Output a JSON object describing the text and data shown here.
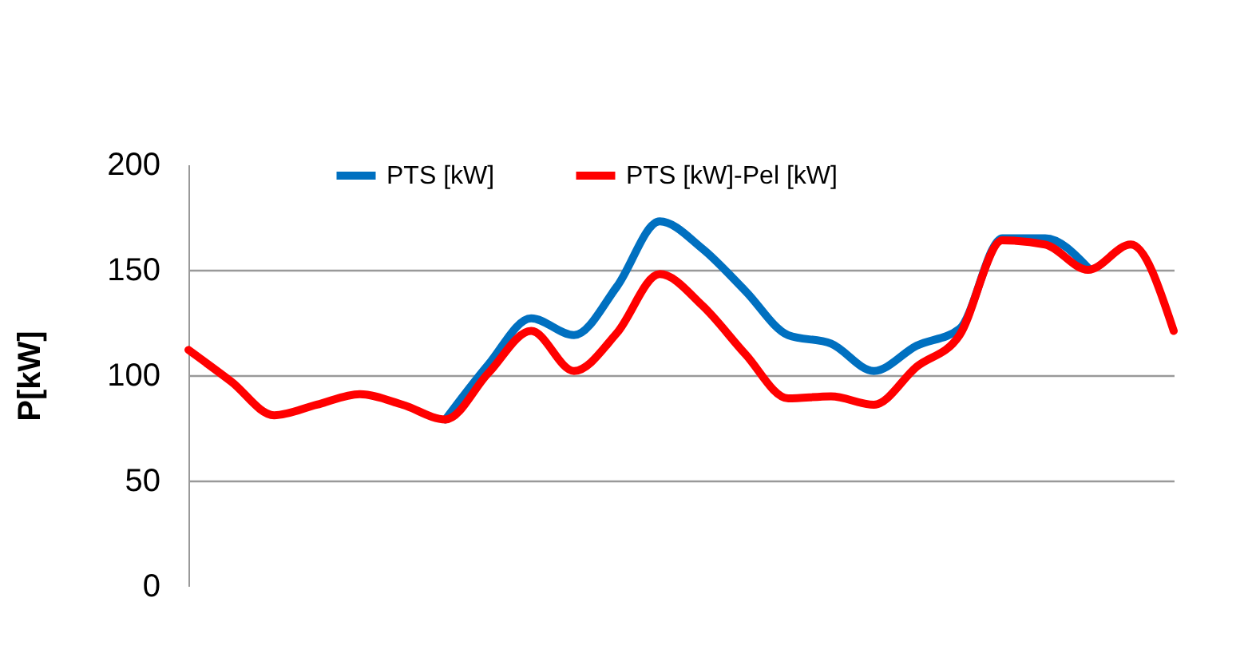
{
  "chart_data": {
    "type": "line",
    "ylabel": "P[kW]",
    "categories": [
      null,
      null,
      null,
      null,
      null,
      null,
      null,
      null,
      null,
      null,
      null,
      null,
      null,
      null,
      null,
      null,
      null,
      null,
      null,
      null,
      null,
      null,
      null,
      null
    ],
    "series": [
      {
        "name": "PTS [kW]",
        "color": "#0070c0",
        "values": [
          null,
          null,
          null,
          null,
          null,
          null,
          79,
          105,
          127,
          119,
          142,
          173,
          160,
          140,
          119,
          115,
          102,
          114,
          122,
          165,
          165,
          151,
          null,
          null
        ]
      },
      {
        "name": "PTS [kW]-Pel [kW]",
        "color": "#ff0000",
        "values": [
          112,
          97,
          81,
          86,
          91,
          86,
          79,
          101,
          121,
          102,
          120,
          148,
          133,
          110,
          89,
          90,
          86,
          104,
          119,
          164,
          162,
          150,
          162,
          121
        ]
      }
    ],
    "ylim": [
      0,
      200
    ],
    "yticks": [
      0,
      50,
      100,
      150,
      200
    ],
    "grid": "y",
    "legend": "top",
    "marker": "none",
    "line_style": "solid"
  }
}
